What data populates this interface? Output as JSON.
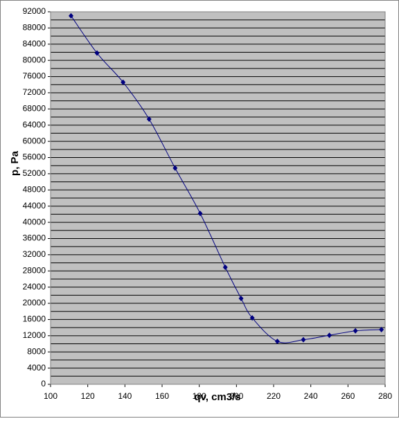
{
  "chart_data": {
    "type": "scatter",
    "x_label": "qv, cm3/s",
    "y_label": "p, Pa",
    "series": [
      {
        "color": "#000080",
        "x": [
          111,
          125,
          139,
          153,
          167,
          180.5,
          194,
          202.5,
          208.5,
          222,
          236,
          250,
          264,
          278
        ],
        "values": [
          91000,
          81800,
          74600,
          65500,
          53400,
          42200,
          28900,
          21200,
          16400,
          10600,
          11000,
          12100,
          13200,
          13500
        ]
      }
    ],
    "xlim": [
      100,
      280
    ],
    "xticks": [
      100,
      120,
      140,
      160,
      180,
      200,
      220,
      240,
      260,
      280
    ],
    "ylim": [
      0,
      92000
    ],
    "yticks": [
      0,
      4000,
      8000,
      12000,
      16000,
      20000,
      24000,
      28000,
      32000,
      36000,
      40000,
      44000,
      48000,
      52000,
      56000,
      60000,
      64000,
      68000,
      72000,
      76000,
      80000,
      84000,
      88000,
      92000
    ],
    "grid": true,
    "minor_grid": true,
    "smooth": true,
    "plot_background": "#c0c0c0"
  }
}
